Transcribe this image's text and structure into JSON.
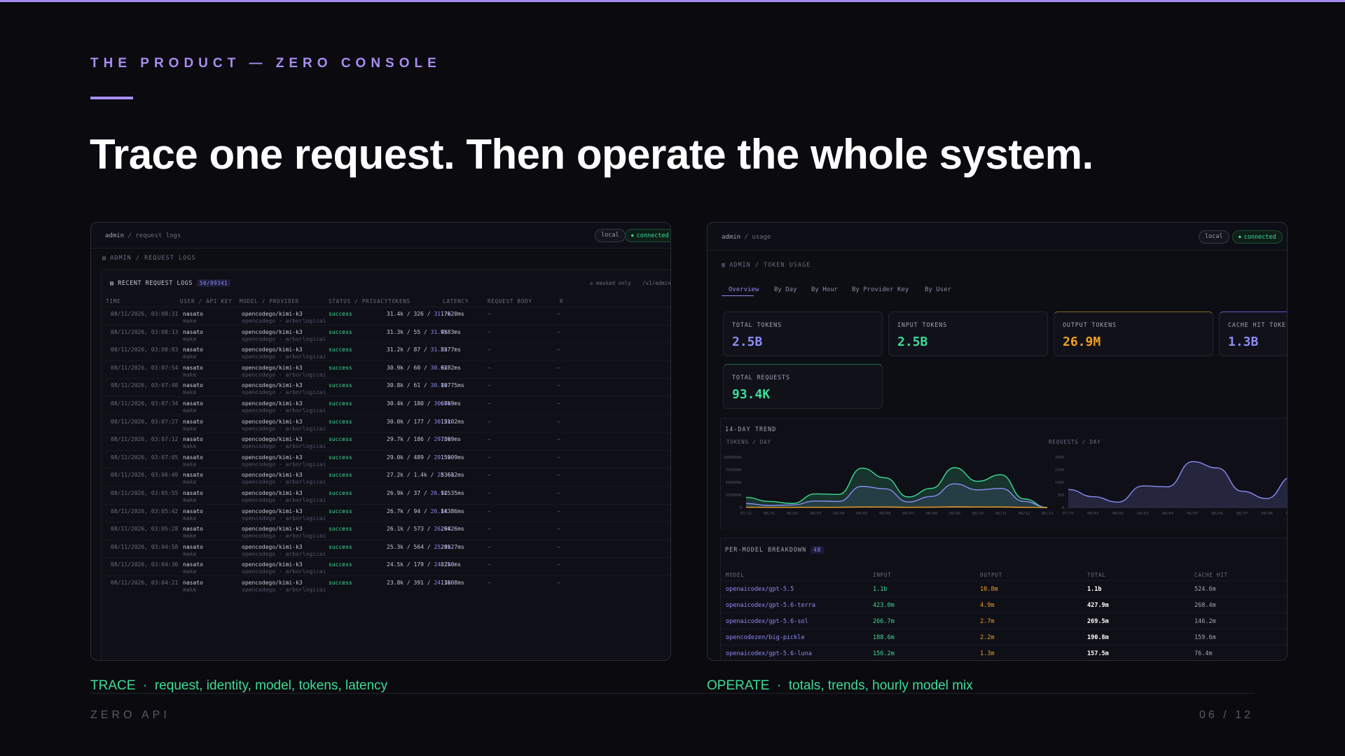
{
  "slide": {
    "eyebrow": "THE PRODUCT — ZERO CONSOLE",
    "headline": "Trace one request. Then operate the whole system.",
    "accent": "#a88cf0"
  },
  "left": {
    "crumb_root": "admin",
    "crumb_sep": "/",
    "crumb_page": "request logs",
    "pill_env": "local",
    "pill_status": "connected",
    "section": "ADMIN / REQUEST LOGS",
    "section_icon": "file-icon",
    "table_title": "RECENT REQUEST LOGS",
    "count_badge": "50/89341",
    "note_masked": "masked only",
    "note_path": "/v1/admin",
    "columns": [
      "TIME",
      "USER / API KEY",
      "MODEL / PROVIDER",
      "STATUS / PRIVACY",
      "TOKENS",
      "LATENCY",
      "REQUEST BODY",
      "R"
    ],
    "rows": [
      {
        "time": "08/11/2026, 03:08:31",
        "user": "nasato",
        "key": "make",
        "model": "opencodego/kimi-k3",
        "provider": "opencodego · arborlogicai",
        "status": "success",
        "tokens": "31.4k / 326 / ",
        "cached": "31.7k",
        "latency": "17620ms",
        "body": "—",
        "r": "—"
      },
      {
        "time": "08/11/2026, 03:08:13",
        "user": "nasato",
        "key": "make",
        "model": "opencodego/kimi-k3",
        "provider": "opencodego · arborlogicai",
        "status": "success",
        "tokens": "31.3k / 55 / ",
        "cached": "31.4k",
        "latency": "9583ms",
        "body": "—",
        "r": "—"
      },
      {
        "time": "08/11/2026, 03:08:03",
        "user": "nasato",
        "key": "make",
        "model": "opencodego/kimi-k3",
        "provider": "opencodego · arborlogicai",
        "status": "success",
        "tokens": "31.2k / 87 / ",
        "cached": "31.3k",
        "latency": "8377ms",
        "body": "—",
        "r": "—"
      },
      {
        "time": "08/11/2026, 03:07:54",
        "user": "nasato",
        "key": "make",
        "model": "opencodego/kimi-k3",
        "provider": "opencodego · arborlogicai",
        "status": "success",
        "tokens": "30.9k / 60 / ",
        "cached": "30.9k",
        "latency": "6282ms",
        "body": "—",
        "r": "—"
      },
      {
        "time": "08/11/2026, 03:07:48",
        "user": "nasato",
        "key": "make",
        "model": "opencodego/kimi-k3",
        "provider": "opencodego · arborlogicai",
        "status": "success",
        "tokens": "30.8k / 61 / ",
        "cached": "30.8k",
        "latency": "10775ms",
        "body": "—",
        "r": "—"
      },
      {
        "time": "08/11/2026, 03:07:34",
        "user": "nasato",
        "key": "make",
        "model": "opencodego/kimi-k3",
        "provider": "opencodego · arborlogicai",
        "status": "success",
        "tokens": "30.4k / 180 / ",
        "cached": "30.6k",
        "latency": "6769ms",
        "body": "—",
        "r": "—"
      },
      {
        "time": "08/11/2026, 03:07:27",
        "user": "nasato",
        "key": "make",
        "model": "opencodego/kimi-k3",
        "provider": "opencodego · arborlogicai",
        "status": "success",
        "tokens": "30.0k / 177 / ",
        "cached": "30.2k",
        "latency": "15102ms",
        "body": "—",
        "r": "—"
      },
      {
        "time": "08/11/2026, 03:07:12",
        "user": "nasato",
        "key": "make",
        "model": "opencodego/kimi-k3",
        "provider": "opencodego · arborlogicai",
        "status": "success",
        "tokens": "29.7k / 186 / ",
        "cached": "29.8k",
        "latency": "7309ms",
        "body": "—",
        "r": "—"
      },
      {
        "time": "08/11/2026, 03:07:05",
        "user": "nasato",
        "key": "make",
        "model": "opencodego/kimi-k3",
        "provider": "opencodego · arborlogicai",
        "status": "success",
        "tokens": "29.0k / 489 / ",
        "cached": "29.5k",
        "latency": "15909ms",
        "body": "—",
        "r": "—"
      },
      {
        "time": "08/11/2026, 03:06:49",
        "user": "nasato",
        "key": "make",
        "model": "opencodego/kimi-k3",
        "provider": "opencodego · arborlogicai",
        "status": "success",
        "tokens": "27.2k / 1.4k / ",
        "cached": "28.6k",
        "latency": "53632ms",
        "body": "—",
        "r": "—"
      },
      {
        "time": "08/11/2026, 03:05:55",
        "user": "nasato",
        "key": "make",
        "model": "opencodego/kimi-k3",
        "provider": "opencodego · arborlogicai",
        "status": "success",
        "tokens": "26.9k / 37 / ",
        "cached": "26.9k",
        "latency": "12535ms",
        "body": "—",
        "r": "—"
      },
      {
        "time": "08/11/2026, 03:05:42",
        "user": "nasato",
        "key": "make",
        "model": "opencodego/kimi-k3",
        "provider": "opencodego · arborlogicai",
        "status": "success",
        "tokens": "26.7k / 94 / ",
        "cached": "26.8k",
        "latency": "14386ms",
        "body": "—",
        "r": "—"
      },
      {
        "time": "08/11/2026, 03:05:28",
        "user": "nasato",
        "key": "make",
        "model": "opencodego/kimi-k3",
        "provider": "opencodego · arborlogicai",
        "status": "success",
        "tokens": "26.1k / 573 / ",
        "cached": "26.6k",
        "latency": "29426ms",
        "body": "—",
        "r": "—"
      },
      {
        "time": "08/11/2026, 03:04:58",
        "user": "nasato",
        "key": "make",
        "model": "opencodego/kimi-k3",
        "provider": "opencodego · arborlogicai",
        "status": "success",
        "tokens": "25.3k / 564 / ",
        "cached": "25.9k",
        "latency": "28527ms",
        "body": "—",
        "r": "—"
      },
      {
        "time": "08/11/2026, 03:04:30",
        "user": "nasato",
        "key": "make",
        "model": "opencodego/kimi-k3",
        "provider": "opencodego · arborlogicai",
        "status": "success",
        "tokens": "24.5k / 179 / ",
        "cached": "24.7k",
        "latency": "8250ms",
        "body": "—",
        "r": "—"
      },
      {
        "time": "08/11/2026, 03:04:21",
        "user": "nasato",
        "key": "make",
        "model": "opencodego/kimi-k3",
        "provider": "opencodego · arborlogicai",
        "status": "success",
        "tokens": "23.8k / 391 / ",
        "cached": "24.1k",
        "latency": "13808ms",
        "body": "—",
        "r": "—"
      }
    ]
  },
  "right": {
    "crumb_root": "admin",
    "crumb_sep": "/",
    "crumb_page": "usage",
    "pill_env": "local",
    "pill_status": "connected",
    "section": "ADMIN / TOKEN USAGE",
    "section_icon": "bar-chart-icon",
    "tabs": [
      "Overview",
      "By Day",
      "By Hour",
      "By Provider Key",
      "By User"
    ],
    "cards": [
      {
        "label": "TOTAL TOKENS",
        "value": "2.5B",
        "color": "#8b8cf5"
      },
      {
        "label": "INPUT TOKENS",
        "value": "2.5B",
        "color": "#3ddc97"
      },
      {
        "label": "OUTPUT TOKENS",
        "value": "26.9M",
        "color": "#f0a020"
      },
      {
        "label": "CACHE HIT TOKE",
        "value": "1.3B",
        "color": "#8b8cf5"
      },
      {
        "label": "TOTAL REQUESTS",
        "value": "93.4K",
        "color": "#3ddc97"
      }
    ],
    "trend_title": "14-DAY TREND",
    "breakdown_title": "PER-MODEL BREAKDOWN",
    "breakdown_count": "48",
    "breakdown_cols": [
      "MODEL",
      "INPUT",
      "OUTPUT",
      "TOTAL",
      "CACHE HIT"
    ],
    "breakdown_rows": [
      {
        "model": "openaicodex/gpt-5.5",
        "input": "1.1b",
        "output": "10.8m",
        "total": "1.1b",
        "cache": "524.6m"
      },
      {
        "model": "openaicodex/gpt-5.6-terra",
        "input": "423.0m",
        "output": "4.9m",
        "total": "427.9m",
        "cache": "268.4m"
      },
      {
        "model": "openaicodex/gpt-5.6-sol",
        "input": "266.7m",
        "output": "2.7m",
        "total": "269.5m",
        "cache": "146.2m"
      },
      {
        "model": "opencodezen/big-pickle",
        "input": "188.6m",
        "output": "2.2m",
        "total": "190.8m",
        "cache": "159.6m"
      },
      {
        "model": "openaicodex/gpt-5.6-luna",
        "input": "156.2m",
        "output": "1.3m",
        "total": "157.5m",
        "cache": "76.4m"
      }
    ]
  },
  "chart_data": [
    {
      "type": "area",
      "title": "TOKENS / DAY",
      "y_ticks": [
        "1000000k",
        "750000k",
        "500000k",
        "250000k",
        "0"
      ],
      "ylim": [
        0,
        1000000
      ],
      "categories": [
        "07/31",
        "08/01",
        "08/02",
        "08/03",
        "08/04",
        "08/05",
        "08/06",
        "08/07",
        "08/08",
        "08/09",
        "08/10",
        "08/11",
        "08/12",
        "08/13"
      ],
      "series": [
        {
          "color": "#3ddc97",
          "values": [
            200000,
            120000,
            80000,
            270000,
            260000,
            780000,
            590000,
            210000,
            380000,
            790000,
            520000,
            650000,
            170000,
            0
          ]
        },
        {
          "color": "#8b8cf5",
          "values": [
            80000,
            40000,
            50000,
            130000,
            120000,
            420000,
            370000,
            110000,
            220000,
            470000,
            350000,
            380000,
            120000,
            0
          ]
        },
        {
          "color": "#f0a020",
          "values": [
            5000,
            3000,
            3000,
            5000,
            5000,
            10000,
            9000,
            5000,
            6000,
            12000,
            9000,
            10000,
            4000,
            0
          ]
        }
      ]
    },
    {
      "type": "area",
      "title": "REQUESTS / DAY",
      "y_ticks": [
        "2800",
        "2100",
        "1400",
        "700",
        "0"
      ],
      "ylim": [
        0,
        2800
      ],
      "categories": [
        "07/31",
        "08/01",
        "08/02",
        "08/03",
        "08/04",
        "08/05",
        "08/06",
        "08/07",
        "08/08",
        "08/09"
      ],
      "series": [
        {
          "color": "#8b8cf5",
          "values": [
            1000,
            600,
            300,
            1200,
            1150,
            2550,
            2200,
            900,
            500,
            1700
          ]
        }
      ]
    }
  ],
  "captions": {
    "left_key": "TRACE",
    "left_text": "request, identity, model, tokens, latency",
    "right_key": "OPERATE",
    "right_text": "totals, trends, hourly model mix",
    "sep": "·"
  },
  "footer": {
    "brand": "ZERO API",
    "pager": "06 / 12"
  }
}
